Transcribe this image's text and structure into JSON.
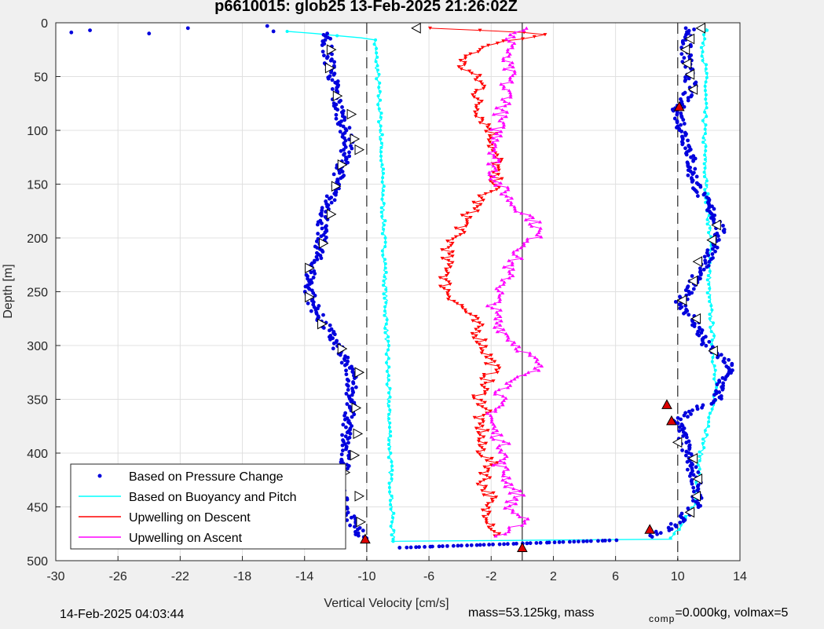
{
  "chart_data": {
    "type": "scatter",
    "title": "p6610015: glob25 13-Feb-2025 21:26:02Z",
    "xlabel": "Vertical Velocity [cm/s]",
    "ylabel": "Depth [m]",
    "xlim": [
      -30,
      14
    ],
    "ylim": [
      0,
      500
    ],
    "y_reversed": true,
    "xticks": [
      -30,
      -26,
      -22,
      -18,
      -14,
      -10,
      -6,
      -2,
      2,
      6,
      10,
      14
    ],
    "yticks": [
      0,
      50,
      100,
      150,
      200,
      250,
      300,
      350,
      400,
      450,
      500
    ],
    "grid": true,
    "legend_position": "bottom-left",
    "reference_lines": [
      {
        "x": -10,
        "style": "dashed"
      },
      {
        "x": 0,
        "style": "solid"
      },
      {
        "x": 10,
        "style": "dashed"
      }
    ],
    "series": [
      {
        "name": "Based on Pressure Change",
        "color": "#0000dd",
        "marker": "dot",
        "descent": {
          "depth": [
            10,
            30,
            50,
            70,
            90,
            110,
            130,
            150,
            170,
            190,
            210,
            230,
            250,
            270,
            290,
            310,
            330,
            350,
            370,
            390,
            410,
            430,
            450,
            470,
            480
          ],
          "values": [
            -12.6,
            -12.5,
            -12.2,
            -12.0,
            -11.6,
            -11.2,
            -11.5,
            -12.0,
            -12.5,
            -12.9,
            -13.0,
            -13.6,
            -13.7,
            -13.2,
            -12.3,
            -11.6,
            -10.9,
            -11.0,
            -11.2,
            -11.4,
            -11.4,
            -11.8,
            -11.5,
            -10.6,
            -10.2
          ],
          "surface_scatter": [
            [
              -29.0,
              9
            ],
            [
              -27.8,
              7
            ],
            [
              -24.0,
              10
            ],
            [
              -21.5,
              5
            ],
            [
              -16.4,
              3
            ],
            [
              -16.0,
              8
            ]
          ]
        },
        "ascent": {
          "depth": [
            5,
            20,
            40,
            60,
            80,
            100,
            120,
            140,
            160,
            180,
            190,
            200,
            220,
            240,
            260,
            280,
            300,
            310,
            320,
            335,
            350,
            360,
            370,
            390,
            410,
            430,
            450,
            470,
            478
          ],
          "values": [
            10.8,
            10.5,
            10.6,
            10.9,
            10.0,
            10.3,
            10.8,
            10.9,
            11.5,
            12.4,
            12.7,
            12.6,
            12.0,
            11.0,
            10.2,
            11.2,
            11.8,
            12.7,
            13.4,
            12.8,
            12.5,
            11.0,
            10.0,
            10.4,
            10.8,
            11.3,
            11.1,
            9.5,
            8.0
          ],
          "bottom_turn": {
            "depth": [
              481,
              483,
              485,
              487,
              488
            ],
            "values": [
              6.0,
              2.0,
              -2.0,
              -6.0,
              -8.0
            ]
          }
        }
      },
      {
        "name": "Based on Buoyancy and Pitch",
        "color": "#00ffff",
        "marker": "line",
        "descent": {
          "depth": [
            8,
            15,
            50,
            100,
            150,
            200,
            250,
            300,
            350,
            400,
            450,
            482
          ],
          "values": [
            -15.0,
            -9.5,
            -9.3,
            -9.1,
            -9.0,
            -8.9,
            -8.8,
            -8.7,
            -8.6,
            -8.5,
            -8.4,
            -8.3
          ]
        },
        "bottom_connector": {
          "depth": [
            482,
            480
          ],
          "values": [
            -8.3,
            9.6
          ]
        },
        "ascent": {
          "depth": [
            480,
            450,
            400,
            350,
            300,
            250,
            200,
            150,
            100,
            50,
            20,
            5
          ],
          "values": [
            9.6,
            11.0,
            11.5,
            12.4,
            12.3,
            12.0,
            12.1,
            11.8,
            11.7,
            11.8,
            11.6,
            11.9
          ]
        }
      },
      {
        "name": "Upwelling on Descent",
        "color": "#ff0000",
        "marker": "triangle-down",
        "depth": [
          5,
          10,
          20,
          30,
          40,
          50,
          60,
          70,
          80,
          90,
          100,
          110,
          120,
          130,
          140,
          150,
          160,
          170,
          180,
          190,
          200,
          210,
          220,
          230,
          240,
          250,
          260,
          270,
          280,
          290,
          300,
          310,
          320,
          330,
          340,
          350,
          360,
          370,
          380,
          390,
          400,
          410,
          420,
          430,
          440,
          450,
          460,
          470,
          478
        ],
        "values": [
          -6.0,
          1.5,
          -2.0,
          -3.5,
          -4.0,
          -3.0,
          -2.5,
          -3.0,
          -2.8,
          -2.5,
          -2.0,
          -1.8,
          -2.0,
          -1.5,
          -2.0,
          -1.5,
          -2.5,
          -3.0,
          -3.5,
          -3.8,
          -4.5,
          -4.7,
          -5.0,
          -4.6,
          -5.0,
          -4.8,
          -4.2,
          -3.5,
          -3.0,
          -2.8,
          -2.5,
          -2.2,
          -1.8,
          -2.2,
          -2.5,
          -2.8,
          -2.2,
          -3.0,
          -2.5,
          -2.8,
          -2.5,
          -2.0,
          -2.3,
          -2.5,
          -2.0,
          -2.5,
          -2.0,
          -1.8,
          -1.5
        ]
      },
      {
        "name": "Upwelling on Ascent",
        "color": "#ff00ff",
        "marker": "triangle-up",
        "depth": [
          478,
          470,
          460,
          450,
          440,
          430,
          420,
          410,
          400,
          390,
          380,
          370,
          360,
          350,
          340,
          330,
          320,
          310,
          300,
          290,
          280,
          270,
          260,
          250,
          240,
          230,
          220,
          210,
          200,
          190,
          180,
          170,
          160,
          150,
          140,
          130,
          120,
          110,
          100,
          90,
          80,
          70,
          60,
          50,
          40,
          30,
          20,
          10,
          5
        ],
        "values": [
          -1.5,
          -0.5,
          0.0,
          -1.0,
          -0.2,
          -0.8,
          -1.0,
          -1.5,
          -1.0,
          -1.3,
          -1.8,
          -2.0,
          -1.8,
          -1.5,
          -1.2,
          0.0,
          1.0,
          0.5,
          -0.3,
          -1.0,
          -1.5,
          -1.8,
          -1.8,
          -1.5,
          -1.0,
          -1.0,
          -0.5,
          0.0,
          0.8,
          1.0,
          0.5,
          -0.5,
          -1.0,
          -1.5,
          -1.8,
          -1.8,
          -1.7,
          -1.5,
          -1.6,
          -1.5,
          -1.3,
          -0.8,
          -1.2,
          -0.8,
          -1.0,
          -1.2,
          -0.5,
          -1.0,
          0.5
        ]
      }
    ],
    "triangle_markers": {
      "hollow_left": [
        [
          -6.8,
          5
        ]
      ],
      "hollow_descent": [
        [
          -12.3,
          25
        ],
        [
          -12.4,
          42
        ],
        [
          -11.9,
          68
        ],
        [
          -11.0,
          85
        ],
        [
          -10.8,
          108
        ],
        [
          -10.5,
          118
        ],
        [
          -11.6,
          132
        ],
        [
          -12.0,
          152
        ],
        [
          -12.3,
          178
        ],
        [
          -12.8,
          205
        ],
        [
          -13.7,
          228
        ],
        [
          -13.7,
          255
        ],
        [
          -12.9,
          280
        ],
        [
          -11.6,
          303
        ],
        [
          -10.5,
          325
        ],
        [
          -10.7,
          358
        ],
        [
          -10.6,
          382
        ],
        [
          -10.8,
          402
        ],
        [
          -11.4,
          418
        ],
        [
          -10.5,
          440
        ],
        [
          -10.4,
          464
        ]
      ],
      "hollow_ascent": [
        [
          11.5,
          5
        ],
        [
          10.8,
          15
        ],
        [
          10.5,
          25
        ],
        [
          10.6,
          38
        ],
        [
          10.8,
          48
        ],
        [
          11.0,
          62
        ],
        [
          12.5,
          188
        ],
        [
          12.2,
          202
        ],
        [
          11.3,
          222
        ],
        [
          11.0,
          240
        ],
        [
          10.3,
          258
        ],
        [
          11.2,
          275
        ],
        [
          12.3,
          305
        ],
        [
          10.0,
          390
        ],
        [
          11.0,
          405
        ],
        [
          11.3,
          424
        ],
        [
          11.2,
          440
        ],
        [
          10.8,
          455
        ]
      ],
      "red": [
        [
          10.1,
          78
        ],
        [
          9.3,
          355
        ],
        [
          9.6,
          370
        ],
        [
          8.2,
          471
        ],
        [
          -10.1,
          480
        ],
        [
          0.0,
          488
        ]
      ]
    },
    "footer": {
      "timestamp": "14-Feb-2025 04:03:44",
      "mass": "mass=53.125kg, mass",
      "comp_sub": "comp",
      "comp_rest": "=0.000kg, volmax=5"
    }
  }
}
